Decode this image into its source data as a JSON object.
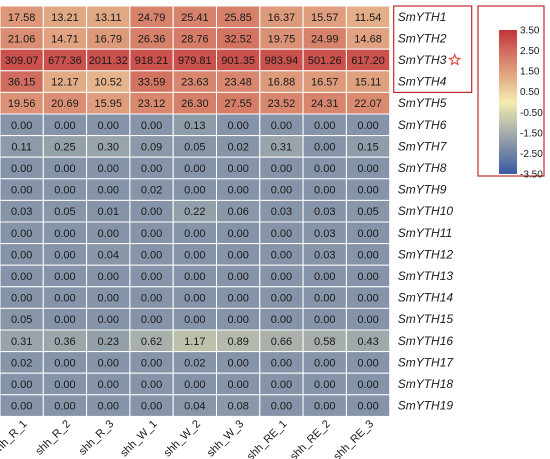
{
  "chart_data": {
    "type": "heatmap",
    "title": "",
    "columns": [
      "shh_R_1",
      "shh_R_2",
      "shh_R_3",
      "shh_W_1",
      "shh_W_2",
      "shh_W_3",
      "shh_RE_1",
      "shh_RE_2",
      "shh_RE_3"
    ],
    "rows": [
      "SmYTH1",
      "SmYTH2",
      "SmYTH3",
      "SmYTH4",
      "SmYTH5",
      "SmYTH6",
      "SmYTH7",
      "SmYTH8",
      "SmYTH9",
      "SmYTH10",
      "SmYTH11",
      "SmYTH12",
      "SmYTH13",
      "SmYTH14",
      "SmYTH15",
      "SmYTH16",
      "SmYTH17",
      "SmYTH18",
      "SmYTH19"
    ],
    "values": [
      [
        "17.58",
        "13.21",
        "13.11",
        "24.79",
        "25.41",
        "25.85",
        "16.37",
        "15.57",
        "11.54"
      ],
      [
        "21.06",
        "14.71",
        "16.79",
        "26.36",
        "28.76",
        "32.52",
        "19.75",
        "24.99",
        "14.68"
      ],
      [
        "309.07",
        "677.36",
        "2011.32",
        "918.21",
        "979.81",
        "901.35",
        "983.94",
        "501.26",
        "617.20"
      ],
      [
        "36.15",
        "12.17",
        "10.52",
        "33.59",
        "23.63",
        "23.48",
        "16.88",
        "16.57",
        "15.11"
      ],
      [
        "19.56",
        "20.69",
        "15.95",
        "23.12",
        "26.30",
        "27.55",
        "23.52",
        "24.31",
        "22.07"
      ],
      [
        "0.00",
        "0.00",
        "0.00",
        "0.00",
        "0.13",
        "0.00",
        "0.00",
        "0.00",
        "0.00"
      ],
      [
        "0.11",
        "0.25",
        "0.30",
        "0.09",
        "0.05",
        "0.02",
        "0.31",
        "0.00",
        "0.15"
      ],
      [
        "0.00",
        "0.00",
        "0.00",
        "0.00",
        "0.00",
        "0.00",
        "0.00",
        "0.00",
        "0.00"
      ],
      [
        "0.00",
        "0.00",
        "0.00",
        "0.02",
        "0.00",
        "0.00",
        "0.00",
        "0.00",
        "0.00"
      ],
      [
        "0.03",
        "0.05",
        "0.01",
        "0.00",
        "0.22",
        "0.06",
        "0.03",
        "0.03",
        "0.05"
      ],
      [
        "0.00",
        "0.00",
        "0.00",
        "0.00",
        "0.00",
        "0.00",
        "0.00",
        "0.03",
        "0.00"
      ],
      [
        "0.00",
        "0.00",
        "0.04",
        "0.00",
        "0.00",
        "0.00",
        "0.00",
        "0.03",
        "0.00"
      ],
      [
        "0.00",
        "0.00",
        "0.00",
        "0.00",
        "0.00",
        "0.00",
        "0.00",
        "0.00",
        "0.00"
      ],
      [
        "0.00",
        "0.00",
        "0.00",
        "0.00",
        "0.00",
        "0.00",
        "0.00",
        "0.00",
        "0.00"
      ],
      [
        "0.05",
        "0.00",
        "0.00",
        "0.00",
        "0.00",
        "0.00",
        "0.00",
        "0.00",
        "0.00"
      ],
      [
        "0.31",
        "0.36",
        "0.23",
        "0.62",
        "1.17",
        "0.89",
        "0.66",
        "0.58",
        "0.43"
      ],
      [
        "0.02",
        "0.00",
        "0.00",
        "0.00",
        "0.02",
        "0.00",
        "0.00",
        "0.00",
        "0.00"
      ],
      [
        "0.00",
        "0.00",
        "0.00",
        "0.00",
        "0.00",
        "0.00",
        "0.00",
        "0.00",
        "0.00"
      ],
      [
        "0.00",
        "0.00",
        "0.00",
        "0.00",
        "0.04",
        "0.08",
        "0.00",
        "0.00",
        "0.00"
      ]
    ],
    "highlighted_rows": [
      "SmYTH1",
      "SmYTH2",
      "SmYTH3",
      "SmYTH4"
    ],
    "starred_row": "SmYTH3",
    "legend": {
      "placement": "top-right",
      "ticks": [
        "3.50",
        "2.50",
        "1.50",
        "0.50",
        "-0.50",
        "-1.50",
        "-2.50",
        "-3.50"
      ],
      "min": -3.5,
      "max": 3.5
    },
    "colors": {
      "low": "#3a58a3",
      "mid": "#f4ecb0",
      "high": "#c2363a",
      "gridline": "#ffffff",
      "highlight_box": "#c0282d",
      "star": "#e0453a"
    }
  }
}
